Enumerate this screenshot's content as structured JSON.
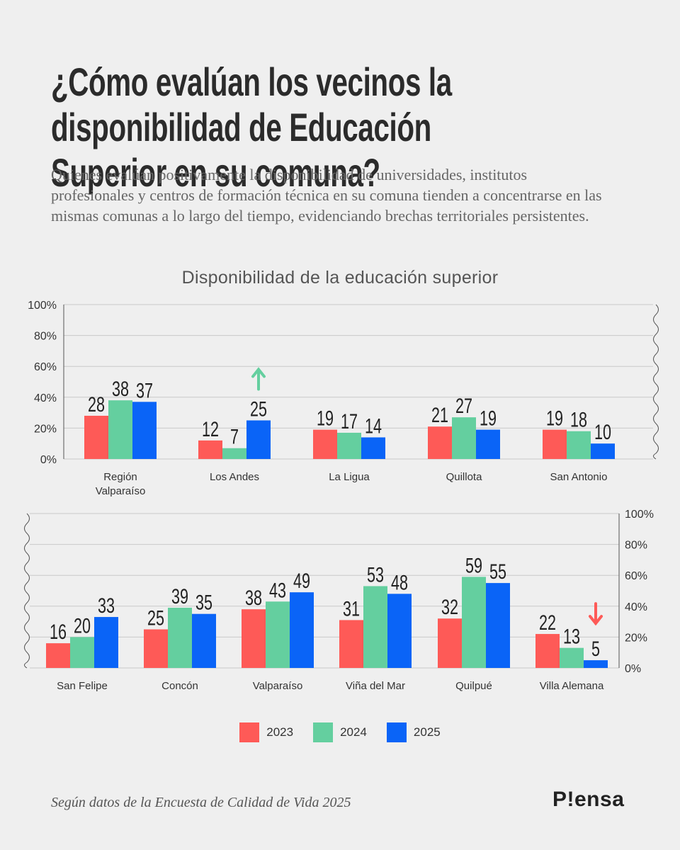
{
  "header": {
    "title": "¿Cómo evalúan los vecinos la disponibilidad de Educación Superior en su comuna?",
    "subtitle": "Quienes evalúan positivamente la disponibilidad de universidades, institutos profesionales y centros de formación técnica en su comuna tienden a concentrarse en las mismas comunas a lo largo del tiempo, evidenciando brechas territoriales persistentes."
  },
  "colors": {
    "2023": "#fe5a57",
    "2024": "#64cf9f",
    "2025": "#0a64f7",
    "up_arrow": "#64cf9f",
    "down_arrow": "#fe5a57"
  },
  "legend": [
    {
      "label": "2023",
      "color": "#fe5a57"
    },
    {
      "label": "2024",
      "color": "#64cf9f"
    },
    {
      "label": "2025",
      "color": "#0a64f7"
    }
  ],
  "chart_data": [
    {
      "type": "bar",
      "title": "Disponibilidad de la educación superior",
      "categories": [
        [
          "Región",
          "Valparaíso"
        ],
        [
          "Los Andes"
        ],
        [
          "La Ligua"
        ],
        [
          "Quillota"
        ],
        [
          "San Antonio"
        ]
      ],
      "series": [
        {
          "name": "2023",
          "values": [
            28,
            12,
            19,
            21,
            19
          ]
        },
        {
          "name": "2024",
          "values": [
            38,
            7,
            17,
            27,
            18
          ]
        },
        {
          "name": "2025",
          "values": [
            37,
            25,
            14,
            19,
            10
          ]
        }
      ],
      "ylim": [
        0,
        100
      ],
      "yticks": [
        "0%",
        "20%",
        "40%",
        "60%",
        "80%",
        "100%"
      ],
      "axis_side": "left",
      "grid": true,
      "annotations": [
        {
          "category": "Los Andes",
          "series": "2025",
          "marker": "up-arrow"
        }
      ]
    },
    {
      "type": "bar",
      "categories": [
        [
          "San Felipe"
        ],
        [
          "Concón"
        ],
        [
          "Valparaíso"
        ],
        [
          "Viña del Mar"
        ],
        [
          "Quilpué"
        ],
        [
          "Villa Alemana"
        ]
      ],
      "series": [
        {
          "name": "2023",
          "values": [
            16,
            25,
            38,
            31,
            32,
            22
          ]
        },
        {
          "name": "2024",
          "values": [
            20,
            39,
            43,
            53,
            59,
            13
          ]
        },
        {
          "name": "2025",
          "values": [
            33,
            35,
            49,
            48,
            55,
            5
          ]
        }
      ],
      "ylim": [
        0,
        100
      ],
      "yticks": [
        "0%",
        "20%",
        "40%",
        "60%",
        "80%",
        "100%"
      ],
      "axis_side": "right",
      "grid": true,
      "annotations": [
        {
          "category": "Villa Alemana",
          "series": "2025",
          "marker": "down-arrow"
        }
      ]
    }
  ],
  "footer": {
    "source": "Según datos de la Encuesta de Calidad de Vida 2025",
    "logo": "P!ensa"
  }
}
